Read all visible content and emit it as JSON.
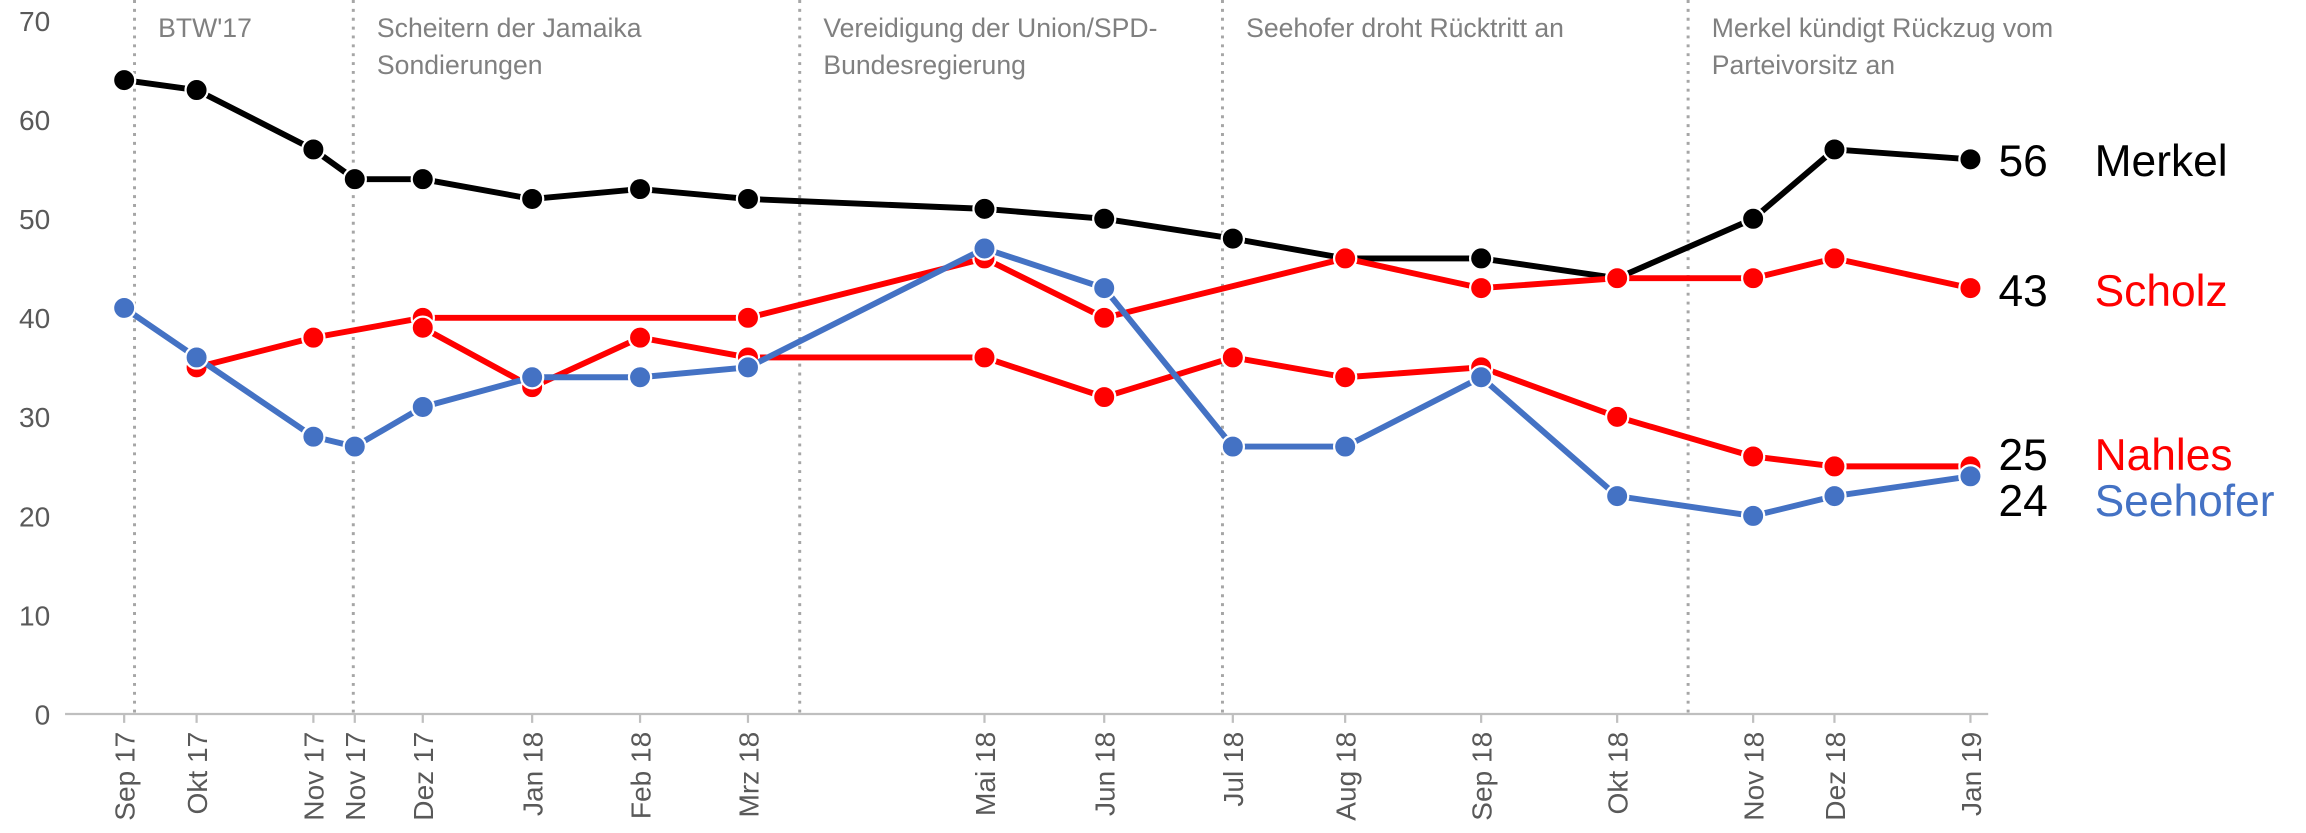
{
  "chart_data": {
    "type": "line",
    "categories": [
      "Sep 17",
      "Okt 17",
      "Nov 17",
      "Nov 17",
      "Dez 17",
      "Jan 18",
      "Feb 18",
      "Mrz 18",
      "Mai 18",
      "Jun 18",
      "Jul 18",
      "Aug 18",
      "Sep 18",
      "Okt 18",
      "Nov 18",
      "Dez 18",
      "Jan 19"
    ],
    "ylim": [
      0,
      70
    ],
    "yticks": [
      0,
      10,
      20,
      30,
      40,
      50,
      60,
      70
    ],
    "grid": false,
    "annotations": [
      [
        "BTW'17"
      ],
      [
        "Scheitern der Jamaika",
        "Sondierungen"
      ],
      [
        "Vereidigung der Union/SPD-",
        "Bundesregierung"
      ],
      [
        "Seehofer droht Rücktritt an"
      ],
      [
        "Merkel kündigt Rückzug vom",
        "Parteivorsitz an"
      ]
    ],
    "series": [
      {
        "name": "Merkel",
        "color": "#000000",
        "values": [
          64,
          63,
          57,
          54,
          54,
          52,
          53,
          52,
          51,
          50,
          48,
          46,
          46,
          44,
          50,
          57,
          56
        ]
      },
      {
        "name": "Scholz",
        "color": "#ff0000",
        "values": [
          null,
          35,
          38,
          null,
          40,
          null,
          null,
          40,
          46,
          40,
          null,
          46,
          43,
          44,
          44,
          46,
          43
        ]
      },
      {
        "name": "Nahles",
        "color": "#ff0000",
        "values": [
          null,
          null,
          null,
          null,
          39,
          33,
          38,
          36,
          36,
          32,
          36,
          34,
          35,
          30,
          26,
          25,
          25
        ]
      },
      {
        "name": "Seehofer",
        "color": "#4472c4",
        "values": [
          41,
          36,
          28,
          27,
          31,
          34,
          34,
          35,
          47,
          43,
          27,
          27,
          34,
          22,
          20,
          22,
          24
        ]
      }
    ]
  }
}
